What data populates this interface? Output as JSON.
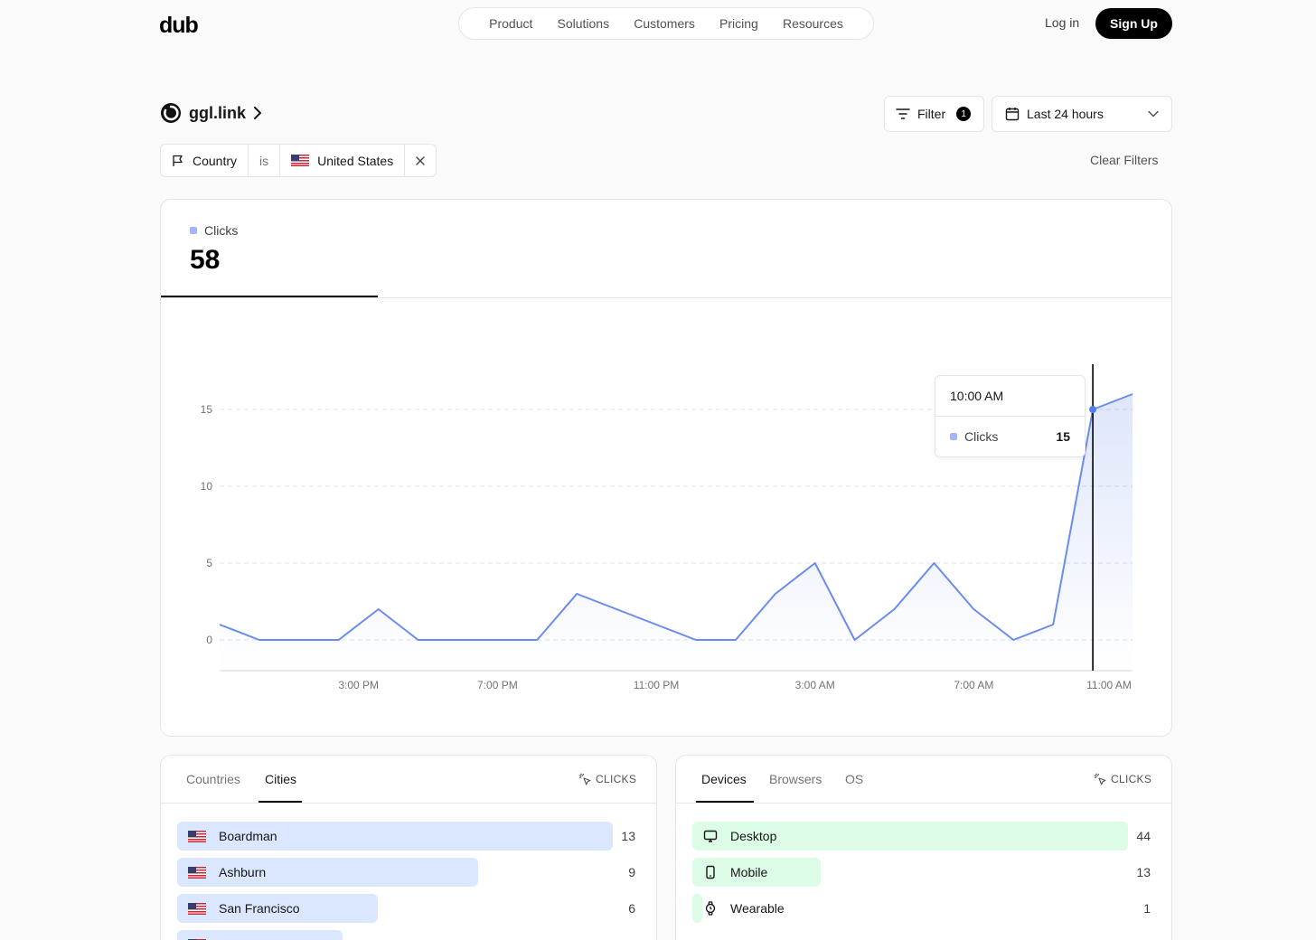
{
  "nav": {
    "logo": "dub",
    "items": [
      "Product",
      "Solutions",
      "Customers",
      "Pricing",
      "Resources"
    ],
    "login": "Log in",
    "signup": "Sign Up"
  },
  "link": {
    "domain": "ggl.link"
  },
  "filter_button": {
    "label": "Filter",
    "count": "1"
  },
  "date_range": {
    "label": "Last 24 hours"
  },
  "active_filter": {
    "key": "Country",
    "op": "is",
    "value": "United States"
  },
  "clear_filters": "Clear Filters",
  "metric": {
    "label": "Clicks",
    "value": "58"
  },
  "chart_data": {
    "type": "area",
    "series": [
      {
        "name": "Clicks",
        "values": [
          1,
          0,
          0,
          0,
          2,
          0,
          0,
          0,
          0,
          3,
          2,
          1,
          0,
          0,
          3,
          5,
          0,
          2,
          5,
          2,
          0,
          1,
          15,
          16
        ]
      }
    ],
    "x_tick_labels": [
      "3:00 PM",
      "7:00 PM",
      "11:00 PM",
      "3:00 AM",
      "7:00 AM",
      "11:00 AM"
    ],
    "y_ticks": [
      0,
      5,
      10,
      15
    ],
    "color": "#6b8cef",
    "grid": "horizontal dashed"
  },
  "tooltip": {
    "time": "10:00 AM",
    "label": "Clicks",
    "value": "15"
  },
  "location_panel": {
    "tabs": [
      "Countries",
      "Cities"
    ],
    "active_tab": "Cities",
    "clicks_label": "CLICKS",
    "rows": [
      {
        "label": "Boardman",
        "value": "13",
        "fraction": 1.0
      },
      {
        "label": "Ashburn",
        "value": "9",
        "fraction": 0.69
      },
      {
        "label": "San Francisco",
        "value": "6",
        "fraction": 0.46
      },
      {
        "label": "",
        "value": "",
        "fraction": 0.38
      }
    ]
  },
  "device_panel": {
    "tabs": [
      "Devices",
      "Browsers",
      "OS"
    ],
    "active_tab": "Devices",
    "clicks_label": "CLICKS",
    "rows": [
      {
        "label": "Desktop",
        "value": "44",
        "fraction": 1.0,
        "icon": "desktop-icon"
      },
      {
        "label": "Mobile",
        "value": "13",
        "fraction": 0.295,
        "icon": "mobile-icon"
      },
      {
        "label": "Wearable",
        "value": "1",
        "fraction": 0.023,
        "icon": "watch-icon"
      }
    ]
  },
  "colors": {
    "city_bar": "#dbe7fe",
    "device_bar": "#dcfce7",
    "line": "#6b8cef"
  }
}
